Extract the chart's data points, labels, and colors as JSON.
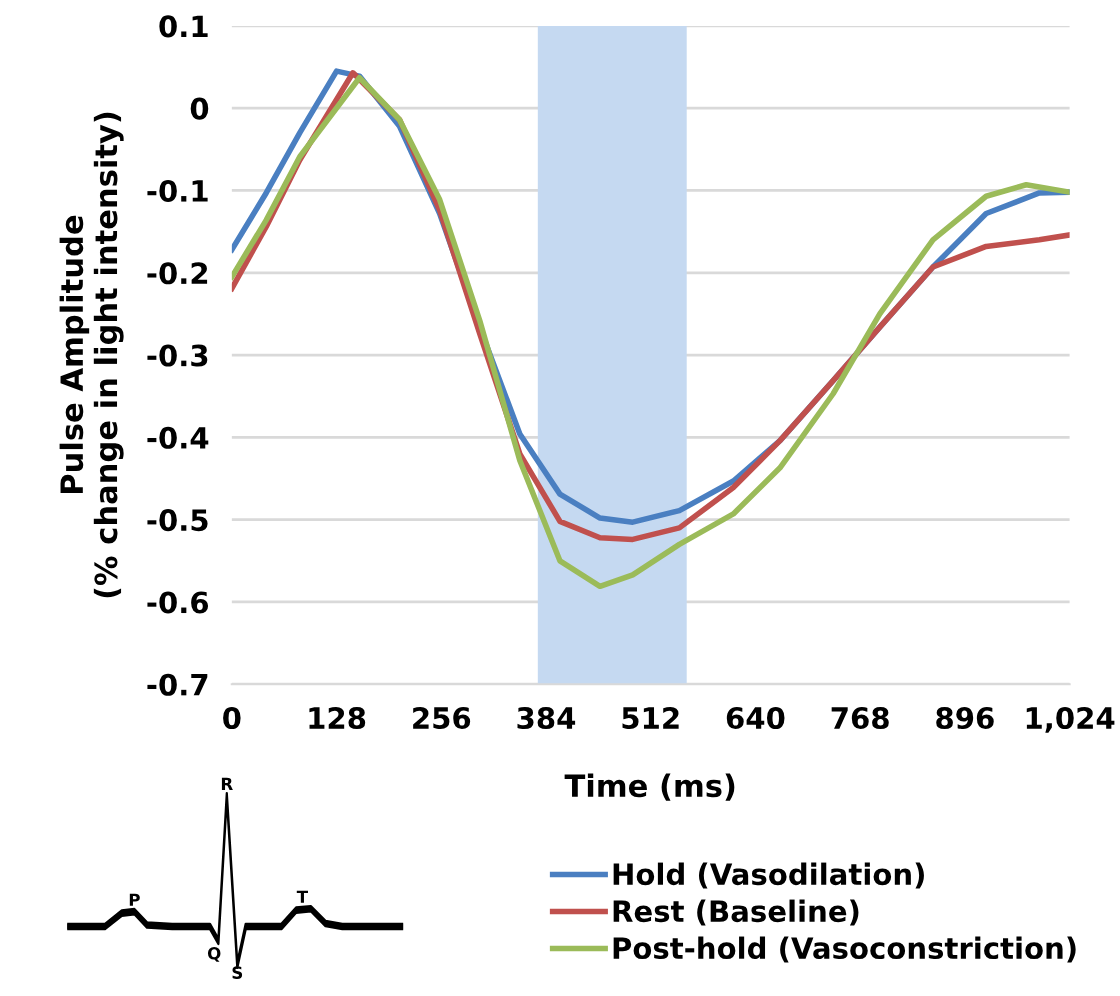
{
  "chart_data": {
    "type": "line",
    "xlabel": "Time (ms)",
    "ylabel": "Pulse Amplitude\n(% change in light intensity)",
    "xlim": [
      0,
      1024
    ],
    "ylim": [
      -0.7,
      0.1
    ],
    "xticks": [
      0,
      128,
      256,
      384,
      512,
      640,
      768,
      896,
      {
        "value": 1024,
        "label": "1,024"
      }
    ],
    "yticks": [
      0.1,
      0,
      -0.1,
      -0.2,
      -0.3,
      -0.4,
      -0.5,
      -0.6,
      -0.7
    ],
    "grid": "y",
    "legend": "bottom",
    "line_style": "solid",
    "bands": [
      {
        "axis": "x",
        "from": 374,
        "to": 556,
        "color": "#c5d9f1"
      }
    ],
    "annotations": [
      "P",
      "Q",
      "R",
      "S",
      "T"
    ],
    "series": [
      {
        "name": "Hold (Vasodilation)",
        "color": "#4a7fc1",
        "x": [
          0,
          42,
          83,
          128,
          156,
          205,
          254,
          303,
          352,
          401,
          450,
          490,
          547,
          613,
          670,
          735,
          792,
          857,
          922,
          987,
          1024
        ],
        "values": [
          -0.172,
          -0.103,
          -0.03,
          0.045,
          0.039,
          -0.022,
          -0.128,
          -0.266,
          -0.396,
          -0.469,
          -0.498,
          -0.503,
          -0.489,
          -0.453,
          -0.404,
          -0.331,
          -0.266,
          -0.193,
          -0.128,
          -0.103,
          -0.102
        ]
      },
      {
        "name": "Rest (Baseline)",
        "color": "#c0504d",
        "x": [
          0,
          42,
          83,
          148,
          205,
          254,
          303,
          352,
          401,
          450,
          490,
          547,
          613,
          670,
          735,
          792,
          857,
          922,
          987,
          1024
        ],
        "values": [
          -0.219,
          -0.144,
          -0.063,
          0.043,
          -0.014,
          -0.124,
          -0.274,
          -0.42,
          -0.502,
          -0.522,
          -0.524,
          -0.51,
          -0.461,
          -0.404,
          -0.331,
          -0.266,
          -0.193,
          -0.168,
          -0.16,
          -0.154
        ]
      },
      {
        "name": "Post-hold (Vasoconstriction)",
        "color": "#9bbb59",
        "x": [
          0,
          42,
          83,
          156,
          205,
          254,
          303,
          352,
          401,
          450,
          490,
          547,
          613,
          670,
          735,
          792,
          857,
          922,
          971,
          1024
        ],
        "values": [
          -0.205,
          -0.136,
          -0.059,
          0.037,
          -0.014,
          -0.111,
          -0.258,
          -0.428,
          -0.55,
          -0.581,
          -0.567,
          -0.53,
          -0.493,
          -0.437,
          -0.347,
          -0.25,
          -0.16,
          -0.107,
          -0.093,
          -0.102
        ]
      }
    ]
  }
}
